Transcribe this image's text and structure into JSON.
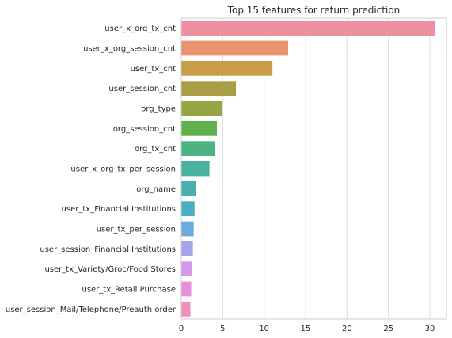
{
  "chart_data": {
    "type": "bar",
    "orientation": "horizontal",
    "title": "Top 15 features for return prediction",
    "xlabel": "",
    "ylabel": "",
    "xlim": [
      0,
      32
    ],
    "xticks": [
      0,
      5,
      10,
      15,
      20,
      25,
      30
    ],
    "grid": "vertical",
    "categories": [
      "user_x_org_tx_cnt",
      "user_x_org_session_cnt",
      "user_tx_cnt",
      "user_session_cnt",
      "org_type",
      "org_session_cnt",
      "org_tx_cnt",
      "user_x_org_tx_per_session",
      "org_name",
      "user_tx_Financial Institutions",
      "user_tx_per_session",
      "user_session_Financial Institutions",
      "user_tx_Variety/Groc/Food Stores",
      "user_tx_Retail Purchase",
      "user_session_Mail/Telephone/Preauth order"
    ],
    "values": [
      30.6,
      12.9,
      11.0,
      6.6,
      4.9,
      4.3,
      4.1,
      3.4,
      1.8,
      1.6,
      1.5,
      1.4,
      1.25,
      1.2,
      1.1
    ],
    "colors": [
      "#f08fa0",
      "#e8956f",
      "#c99c48",
      "#aa9e45",
      "#93a642",
      "#5fb04a",
      "#4db383",
      "#4ab1a0",
      "#48afb0",
      "#4badc2",
      "#6aace0",
      "#a5a6ea",
      "#d697ec",
      "#e98fd8",
      "#ef8fbd"
    ]
  }
}
